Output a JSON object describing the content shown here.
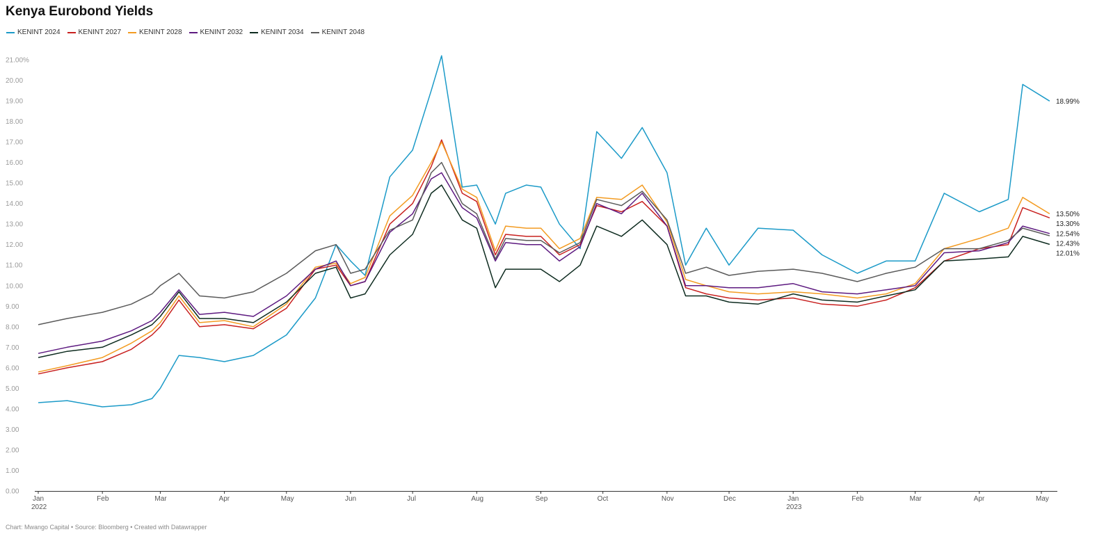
{
  "title": "Kenya Eurobond Yields",
  "footer": "Chart: Mwango Capital • Source: Bloomberg • Created with Datawrapper",
  "chart_data": {
    "type": "line",
    "title": "Kenya Eurobond Yields",
    "xlabel": "",
    "ylabel": "",
    "ylim": [
      0,
      21
    ],
    "y_ticks": [
      "0.00",
      "1.00",
      "2.00",
      "3.00",
      "4.00",
      "5.00",
      "6.00",
      "7.00",
      "8.00",
      "9.00",
      "10.00",
      "11.00",
      "12.00",
      "13.00",
      "14.00",
      "15.00",
      "16.00",
      "17.00",
      "18.00",
      "19.00",
      "20.00",
      "21.00%"
    ],
    "x_ticks": [
      {
        "label": "Jan",
        "sub": "2022",
        "m": 0
      },
      {
        "label": "Feb",
        "sub": "",
        "m": 1
      },
      {
        "label": "Mar",
        "sub": "",
        "m": 2
      },
      {
        "label": "Apr",
        "sub": "",
        "m": 3
      },
      {
        "label": "May",
        "sub": "",
        "m": 4
      },
      {
        "label": "Jun",
        "sub": "",
        "m": 5
      },
      {
        "label": "Jul",
        "sub": "",
        "m": 6
      },
      {
        "label": "Aug",
        "sub": "",
        "m": 7
      },
      {
        "label": "Sep",
        "sub": "",
        "m": 8
      },
      {
        "label": "Oct",
        "sub": "",
        "m": 9
      },
      {
        "label": "Nov",
        "sub": "",
        "m": 10
      },
      {
        "label": "Dec",
        "sub": "",
        "m": 11
      },
      {
        "label": "Jan",
        "sub": "2023",
        "m": 12
      },
      {
        "label": "Feb",
        "sub": "",
        "m": 13
      },
      {
        "label": "Mar",
        "sub": "",
        "m": 14
      },
      {
        "label": "Apr",
        "sub": "",
        "m": 15
      },
      {
        "label": "May",
        "sub": "",
        "m": 16
      }
    ],
    "legend_position": "top-left",
    "grid": false,
    "x": [
      "2022-01-01",
      "2022-01-15",
      "2022-02-01",
      "2022-02-15",
      "2022-02-25",
      "2022-03-01",
      "2022-03-10",
      "2022-03-20",
      "2022-04-01",
      "2022-04-15",
      "2022-05-01",
      "2022-05-15",
      "2022-05-25",
      "2022-06-01",
      "2022-06-08",
      "2022-06-20",
      "2022-07-01",
      "2022-07-10",
      "2022-07-15",
      "2022-07-25",
      "2022-08-01",
      "2022-08-10",
      "2022-08-15",
      "2022-08-25",
      "2022-09-01",
      "2022-09-10",
      "2022-09-20",
      "2022-09-28",
      "2022-10-10",
      "2022-10-20",
      "2022-11-01",
      "2022-11-10",
      "2022-11-20",
      "2022-12-01",
      "2022-12-15",
      "2023-01-01",
      "2023-01-15",
      "2023-02-01",
      "2023-02-15",
      "2023-03-01",
      "2023-03-15",
      "2023-04-01",
      "2023-04-15",
      "2023-04-22",
      "2023-05-05"
    ],
    "series": [
      {
        "name": "KENINT 2024",
        "color": "#1b9ac8",
        "end_label": "18.99%",
        "values": [
          4.3,
          4.4,
          4.1,
          4.2,
          4.5,
          5.0,
          6.6,
          6.5,
          6.3,
          6.6,
          7.6,
          9.4,
          12.0,
          11.2,
          10.5,
          15.3,
          16.6,
          19.5,
          21.2,
          14.8,
          14.9,
          13.0,
          14.5,
          14.9,
          14.8,
          13.0,
          11.8,
          17.5,
          16.2,
          17.7,
          15.5,
          11.0,
          12.8,
          11.0,
          12.8,
          12.7,
          11.5,
          10.6,
          11.2,
          11.2,
          14.5,
          13.6,
          14.2,
          19.8,
          18.99
        ]
      },
      {
        "name": "KENINT 2027",
        "color": "#c8201f",
        "end_label": "13.30%",
        "values": [
          5.7,
          6.0,
          6.3,
          6.9,
          7.6,
          8.0,
          9.3,
          8.0,
          8.1,
          7.9,
          8.9,
          10.8,
          11.0,
          10.0,
          10.2,
          13.0,
          14.0,
          15.8,
          17.1,
          14.5,
          14.1,
          11.5,
          12.5,
          12.4,
          12.4,
          11.5,
          12.0,
          13.9,
          13.6,
          14.1,
          12.9,
          9.9,
          9.6,
          9.4,
          9.3,
          9.4,
          9.1,
          9.0,
          9.3,
          9.9,
          11.2,
          11.8,
          12.0,
          13.8,
          13.3
        ]
      },
      {
        "name": "KENINT 2028",
        "color": "#f39b21",
        "end_label": "13.50%",
        "values": [
          5.8,
          6.1,
          6.5,
          7.2,
          7.8,
          8.2,
          9.5,
          8.2,
          8.3,
          8.0,
          9.1,
          10.9,
          11.1,
          10.1,
          10.4,
          13.4,
          14.4,
          16.0,
          17.0,
          14.7,
          14.3,
          11.7,
          12.9,
          12.8,
          12.8,
          11.8,
          12.3,
          14.3,
          14.2,
          14.9,
          13.1,
          10.3,
          10.0,
          9.7,
          9.6,
          9.7,
          9.6,
          9.4,
          9.6,
          10.1,
          11.8,
          12.3,
          12.8,
          14.3,
          13.5
        ]
      },
      {
        "name": "KENINT 2032",
        "color": "#5d1a80",
        "end_label": "12.54%",
        "values": [
          6.7,
          7.0,
          7.3,
          7.8,
          8.3,
          8.7,
          9.8,
          8.6,
          8.7,
          8.5,
          9.5,
          10.8,
          11.2,
          10.0,
          10.2,
          12.6,
          13.5,
          15.2,
          15.5,
          13.8,
          13.3,
          11.2,
          12.1,
          12.0,
          12.0,
          11.2,
          11.9,
          14.0,
          13.5,
          14.5,
          12.9,
          10.0,
          10.0,
          9.9,
          9.9,
          10.1,
          9.7,
          9.6,
          9.8,
          10.0,
          11.6,
          11.7,
          12.1,
          12.9,
          12.54
        ]
      },
      {
        "name": "KENINT 2034",
        "color": "#0d2b1f",
        "end_label": "12.01%",
        "values": [
          6.5,
          6.8,
          7.0,
          7.6,
          8.1,
          8.5,
          9.7,
          8.4,
          8.4,
          8.2,
          9.2,
          10.6,
          10.9,
          9.4,
          9.6,
          11.5,
          12.5,
          14.5,
          14.9,
          13.2,
          12.8,
          9.9,
          10.8,
          10.8,
          10.8,
          10.2,
          11.0,
          12.9,
          12.4,
          13.2,
          12.0,
          9.5,
          9.5,
          9.2,
          9.1,
          9.6,
          9.3,
          9.2,
          9.5,
          9.8,
          11.2,
          11.3,
          11.4,
          12.4,
          12.01
        ]
      },
      {
        "name": "KENINT 2048",
        "color": "#5a5a5a",
        "end_label": "12.43%",
        "values": [
          8.1,
          8.4,
          8.7,
          9.1,
          9.6,
          10.0,
          10.6,
          9.5,
          9.4,
          9.7,
          10.6,
          11.7,
          12.0,
          10.6,
          10.8,
          12.7,
          13.2,
          15.5,
          16.0,
          14.0,
          13.5,
          11.3,
          12.3,
          12.2,
          12.2,
          11.6,
          12.1,
          14.2,
          13.9,
          14.6,
          13.2,
          10.6,
          10.9,
          10.5,
          10.7,
          10.8,
          10.6,
          10.2,
          10.6,
          10.9,
          11.8,
          11.8,
          12.2,
          12.8,
          12.43
        ]
      }
    ]
  }
}
